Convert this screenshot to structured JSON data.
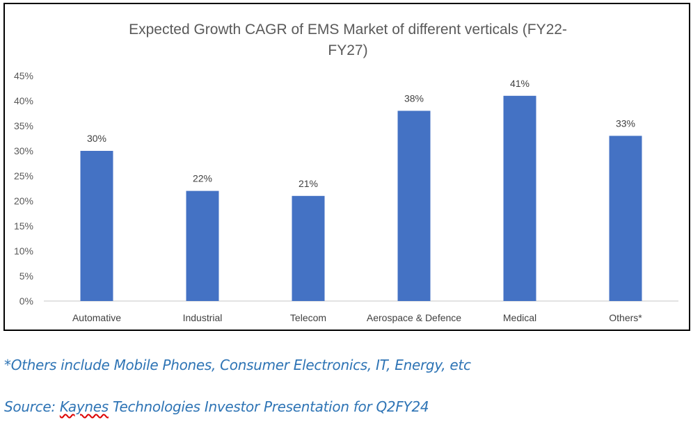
{
  "chart_data": {
    "type": "bar",
    "title_lines": [
      "Expected Growth CAGR of EMS Market of different verticals (FY22-",
      "FY27)"
    ],
    "categories": [
      "Automative",
      "Industrial",
      "Telecom",
      "Aerospace & Defence",
      "Medical",
      "Others*"
    ],
    "values": [
      30,
      22,
      21,
      38,
      41,
      33
    ],
    "data_labels": [
      "30%",
      "22%",
      "21%",
      "38%",
      "41%",
      "33%"
    ],
    "yticks": [
      "0%",
      "5%",
      "10%",
      "15%",
      "20%",
      "25%",
      "30%",
      "35%",
      "40%",
      "45%"
    ],
    "ylim": [
      0,
      45
    ],
    "grid": false,
    "legend": "none",
    "bar_color": "#4472c4",
    "xlabel": "",
    "ylabel": ""
  },
  "notes": {
    "footnote": "*Others include Mobile Phones, Consumer Electronics, IT, Energy, etc",
    "source_prefix": "Source: ",
    "source_company": "Kaynes",
    "source_rest": " Technologies Investor Presentation for Q2FY24"
  }
}
